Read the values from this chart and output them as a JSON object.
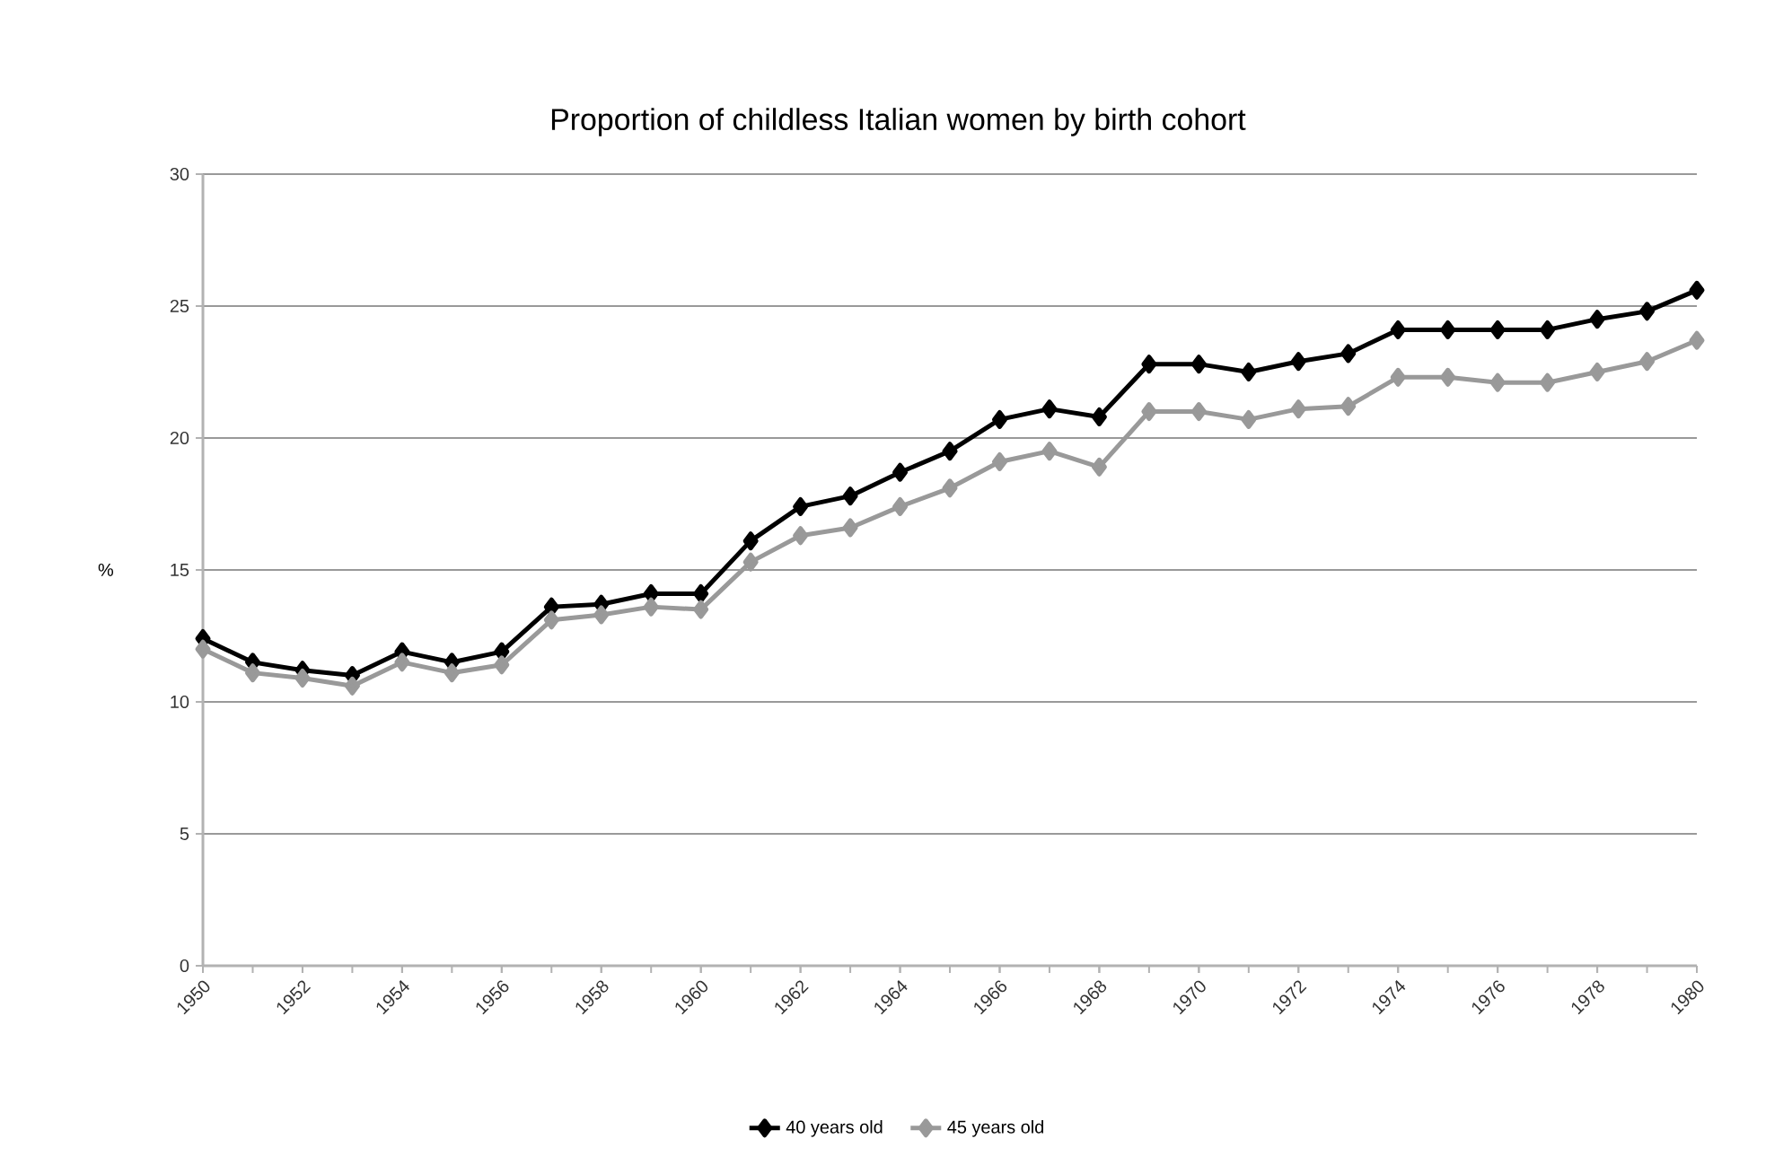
{
  "chart_data": {
    "type": "line",
    "title": "Proportion of childless Italian women by birth cohort",
    "ylabel": "%",
    "x": [
      1950,
      1951,
      1952,
      1953,
      1954,
      1955,
      1956,
      1957,
      1958,
      1959,
      1960,
      1961,
      1962,
      1963,
      1964,
      1965,
      1966,
      1967,
      1968,
      1969,
      1970,
      1971,
      1972,
      1973,
      1974,
      1975,
      1976,
      1977,
      1978,
      1979,
      1980
    ],
    "series": [
      {
        "name": "40 years old",
        "color": "#000000",
        "values": [
          12.4,
          11.5,
          11.2,
          11.0,
          11.9,
          11.5,
          11.9,
          13.6,
          13.7,
          14.1,
          14.1,
          16.1,
          17.4,
          17.8,
          18.7,
          19.5,
          20.7,
          21.1,
          20.8,
          22.8,
          22.8,
          22.5,
          22.9,
          23.2,
          24.1,
          24.1,
          24.1,
          24.1,
          24.5,
          24.8,
          25.6
        ]
      },
      {
        "name": "45 years old",
        "color": "#999999",
        "values": [
          12.0,
          11.1,
          10.9,
          10.6,
          11.5,
          11.1,
          11.4,
          13.1,
          13.3,
          13.6,
          13.5,
          15.3,
          16.3,
          16.6,
          17.4,
          18.1,
          19.1,
          19.5,
          18.9,
          21.0,
          21.0,
          20.7,
          21.1,
          21.2,
          22.3,
          22.3,
          22.1,
          22.1,
          22.5,
          22.9,
          23.7
        ]
      }
    ],
    "xlim": [
      1950,
      1980
    ],
    "xticks": [
      1950,
      1952,
      1954,
      1956,
      1958,
      1960,
      1962,
      1964,
      1966,
      1968,
      1970,
      1972,
      1974,
      1976,
      1978,
      1980
    ],
    "ylim": [
      0,
      30
    ],
    "yticks": [
      0,
      5,
      10,
      15,
      20,
      25,
      30
    ],
    "grid": "y",
    "legend": "bottom",
    "marker": "diamond",
    "line_style": "solid"
  }
}
